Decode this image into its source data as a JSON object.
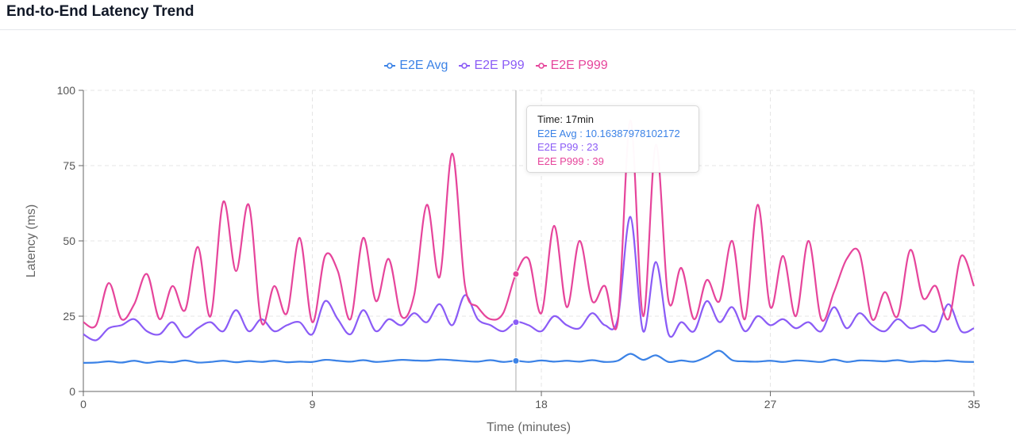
{
  "page": {
    "title": "End-to-End Latency Trend"
  },
  "legend": [
    {
      "name": "E2E Avg",
      "color": "#3b82e6"
    },
    {
      "name": "E2E P99",
      "color": "#8b5cf6"
    },
    {
      "name": "E2E P999",
      "color": "#e6459b"
    }
  ],
  "tooltip": {
    "time_label": "Time: 17min",
    "avg_label": "E2E Avg : 10.16387978102172",
    "p99_label": "E2E P99 : 23",
    "p999_label": "E2E P999 : 39"
  },
  "chart_data": {
    "type": "line",
    "xlabel": "Time (minutes)",
    "ylabel": "Latency (ms)",
    "xlim": [
      0,
      35
    ],
    "ylim": [
      0,
      100
    ],
    "xticks": [
      0,
      9,
      18,
      27,
      35
    ],
    "yticks": [
      0,
      25,
      50,
      75,
      100
    ],
    "grid": true,
    "legend_position": "top-center",
    "hover_x": 17,
    "series": [
      {
        "name": "E2E Avg",
        "color": "#3b82e6",
        "x": [
          0,
          0.5,
          1,
          1.5,
          2,
          2.5,
          3,
          3.5,
          4,
          4.5,
          5,
          5.5,
          6,
          6.5,
          7,
          7.5,
          8,
          8.5,
          9,
          9.5,
          10,
          10.5,
          11,
          11.5,
          12,
          12.5,
          13,
          13.5,
          14,
          14.5,
          15,
          15.5,
          16,
          16.5,
          17,
          17.5,
          18,
          18.5,
          19,
          19.5,
          20,
          20.5,
          21,
          21.5,
          22,
          22.5,
          23,
          23.5,
          24,
          24.5,
          25,
          25.5,
          26,
          26.5,
          27,
          27.5,
          28,
          28.5,
          29,
          29.5,
          30,
          30.5,
          31,
          31.5,
          32,
          32.5,
          33,
          33.5,
          34,
          34.5,
          35
        ],
        "values": [
          9.5,
          9.6,
          10,
          9.6,
          10.2,
          9.5,
          10,
          9.7,
          10.3,
          9.6,
          9.8,
          10.2,
          9.7,
          10.1,
          9.8,
          10.2,
          9.7,
          9.9,
          9.8,
          10.5,
          10.2,
          9.9,
          10.4,
          9.8,
          10.1,
          10.5,
          10.3,
          10.2,
          10.6,
          10.4,
          10.1,
          9.9,
          10.4,
          9.8,
          10.16,
          9.8,
          10.3,
          9.9,
          10.2,
          9.9,
          10.4,
          9.8,
          10.2,
          12.5,
          10.5,
          12,
          9.8,
          10.3,
          9.9,
          11.5,
          13.5,
          10.4,
          10,
          9.9,
          10.2,
          9.8,
          10.3,
          10.1,
          9.8,
          10.6,
          9.8,
          10.3,
          10.2,
          10,
          10.4,
          9.8,
          10.1,
          10,
          10.3,
          9.9,
          9.8
        ]
      },
      {
        "name": "E2E P99",
        "color": "#8b5cf6",
        "x": [
          0,
          0.5,
          1,
          1.5,
          2,
          2.5,
          3,
          3.5,
          4,
          4.5,
          5,
          5.5,
          6,
          6.5,
          7,
          7.5,
          8,
          8.5,
          9,
          9.5,
          10,
          10.5,
          11,
          11.5,
          12,
          12.5,
          13,
          13.5,
          14,
          14.5,
          15,
          15.5,
          16,
          16.5,
          17,
          17.5,
          18,
          18.5,
          19,
          19.5,
          20,
          20.5,
          21,
          21.5,
          22,
          22.5,
          23,
          23.5,
          24,
          24.5,
          25,
          25.5,
          26,
          26.5,
          27,
          27.5,
          28,
          28.5,
          29,
          29.5,
          30,
          30.5,
          31,
          31.5,
          32,
          32.5,
          33,
          33.5,
          34,
          34.5,
          35
        ],
        "values": [
          19,
          17,
          21,
          22,
          24,
          20,
          19,
          23,
          18,
          21,
          23,
          20,
          27,
          20,
          24,
          20,
          22,
          23,
          19,
          30,
          24,
          19,
          27,
          20,
          24,
          22,
          26,
          23,
          29,
          22,
          32,
          24,
          22,
          20,
          23,
          22,
          20,
          25,
          22,
          21,
          26,
          22,
          24,
          58,
          20,
          43,
          19,
          23,
          20,
          30,
          23,
          28,
          20,
          25,
          22,
          24,
          21,
          23,
          20,
          28,
          21,
          26,
          22,
          20,
          24,
          21,
          22,
          20,
          29,
          20,
          21
        ]
      },
      {
        "name": "E2E P999",
        "color": "#e6459b",
        "x": [
          0,
          0.5,
          1,
          1.5,
          2,
          2.5,
          3,
          3.5,
          4,
          4.5,
          5,
          5.5,
          6,
          6.5,
          7,
          7.5,
          8,
          8.5,
          9,
          9.5,
          10,
          10.5,
          11,
          11.5,
          12,
          12.5,
          13,
          13.5,
          14,
          14.5,
          15,
          15.5,
          16,
          16.5,
          17,
          17.5,
          18,
          18.5,
          19,
          19.5,
          20,
          20.5,
          21,
          21.5,
          22,
          22.5,
          23,
          23.5,
          24,
          24.5,
          25,
          25.5,
          26,
          26.5,
          27,
          27.5,
          28,
          28.5,
          29,
          29.5,
          30,
          30.5,
          31,
          31.5,
          32,
          32.5,
          33,
          33.5,
          34,
          34.5,
          35
        ],
        "values": [
          23,
          22,
          36,
          24,
          29,
          39,
          24,
          35,
          27,
          48,
          25,
          63,
          40,
          62,
          23,
          35,
          26,
          51,
          23,
          45,
          40,
          24,
          51,
          30,
          44,
          25,
          32,
          62,
          38,
          79,
          35,
          28,
          24,
          26,
          39,
          44,
          26,
          55,
          28,
          50,
          30,
          35,
          23,
          90,
          25,
          82,
          30,
          41,
          24,
          37,
          30,
          50,
          24,
          62,
          28,
          45,
          25,
          50,
          24,
          33,
          44,
          46,
          24,
          33,
          25,
          47,
          31,
          35,
          24,
          45,
          35
        ]
      }
    ]
  }
}
